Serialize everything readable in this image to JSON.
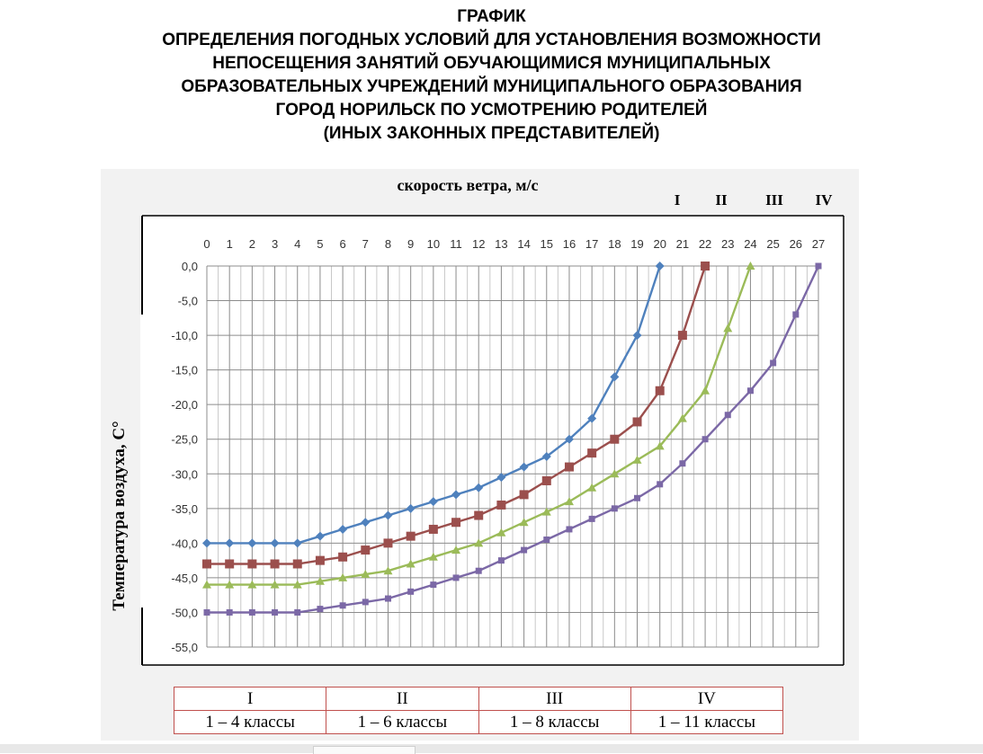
{
  "title_lines": [
    "ГРАФИК",
    "ОПРЕДЕЛЕНИЯ ПОГОДНЫХ УСЛОВИЙ ДЛЯ УСТАНОВЛЕНИЯ ВОЗМОЖНОСТИ",
    "НЕПОСЕЩЕНИЯ ЗАНЯТИЙ ОБУЧАЮЩИМИСЯ МУНИЦИПАЛЬНЫХ",
    "ОБРАЗОВАТЕЛЬНЫХ УЧРЕЖДЕНИЙ МУНИЦИПАЛЬНОГО ОБРАЗОВАНИЯ",
    "ГОРОД НОРИЛЬСК ПО УСМОТРЕНИЮ РОДИТЕЛЕЙ",
    "(ИНЫХ ЗАКОННЫХ ПРЕДСТАВИТЕЛЕЙ)"
  ],
  "chart_data": {
    "type": "line",
    "xlabel": "скорость ветра, м/с",
    "ylabel": "Температура воздуха, С°",
    "x_ticks": [
      0,
      1,
      2,
      3,
      4,
      5,
      6,
      7,
      8,
      9,
      10,
      11,
      12,
      13,
      14,
      15,
      16,
      17,
      18,
      19,
      20,
      21,
      22,
      23,
      24,
      25,
      26,
      27
    ],
    "xlim": [
      0,
      27
    ],
    "ylim": [
      -55,
      0
    ],
    "y_ticks": [
      "0,0",
      "-5,0",
      "-10,0",
      "-15,0",
      "-20,0",
      "-25,0",
      "-30,0",
      "-35,0",
      "-40,0",
      "-45,0",
      "-50,0",
      "-55,0"
    ],
    "x_axis_position": "top",
    "grid": true,
    "series": [
      {
        "name": "I",
        "color": "#4f81bd",
        "marker": "diamond",
        "x": [
          0,
          1,
          2,
          3,
          4,
          5,
          6,
          7,
          8,
          9,
          10,
          11,
          12,
          13,
          14,
          15,
          16,
          17,
          18,
          19,
          20
        ],
        "y": [
          -40,
          -40,
          -40,
          -40,
          -40,
          -39,
          -38,
          -37,
          -36,
          -35,
          -34,
          -33,
          -32,
          -30.5,
          -29,
          -27.5,
          -25,
          -22,
          -16,
          -10,
          0
        ]
      },
      {
        "name": "II",
        "color": "#9b4f4d",
        "marker": "square",
        "x": [
          0,
          1,
          2,
          3,
          4,
          5,
          6,
          7,
          8,
          9,
          10,
          11,
          12,
          13,
          14,
          15,
          16,
          17,
          18,
          19,
          20,
          21,
          22
        ],
        "y": [
          -43,
          -43,
          -43,
          -43,
          -43,
          -42.5,
          -42,
          -41,
          -40,
          -39,
          -38,
          -37,
          -36,
          -34.5,
          -33,
          -31,
          -29,
          -27,
          -25,
          -22.5,
          -18,
          -10,
          0
        ]
      },
      {
        "name": "III",
        "color": "#9bbb59",
        "marker": "triangle",
        "x": [
          0,
          1,
          2,
          3,
          4,
          5,
          6,
          7,
          8,
          9,
          10,
          11,
          12,
          13,
          14,
          15,
          16,
          17,
          18,
          19,
          20,
          21,
          22,
          23,
          24
        ],
        "y": [
          -46,
          -46,
          -46,
          -46,
          -46,
          -45.5,
          -45,
          -44.5,
          -44,
          -43,
          -42,
          -41,
          -40,
          -38.5,
          -37,
          -35.5,
          -34,
          -32,
          -30,
          -28,
          -26,
          -22,
          -18,
          -9,
          0
        ]
      },
      {
        "name": "IV",
        "color": "#7b68a6",
        "marker": "x",
        "x": [
          0,
          1,
          2,
          3,
          4,
          5,
          6,
          7,
          8,
          9,
          10,
          11,
          12,
          13,
          14,
          15,
          16,
          17,
          18,
          19,
          20,
          21,
          22,
          23,
          24,
          25,
          26,
          27
        ],
        "y": [
          -50,
          -50,
          -50,
          -50,
          -50,
          -49.5,
          -49,
          -48.5,
          -48,
          -47,
          -46,
          -45,
          -44,
          -42.5,
          -41,
          -39.5,
          -38,
          -36.5,
          -35,
          -33.5,
          -31.5,
          -28.5,
          -25,
          -21.5,
          -18,
          -14,
          -7,
          0
        ]
      }
    ]
  },
  "legend_table": {
    "headers": [
      "I",
      "II",
      "III",
      "IV"
    ],
    "groups": [
      "1 – 4 классы",
      "1 – 6 классы",
      "1 – 8 классы",
      "1 – 11 классы"
    ]
  }
}
